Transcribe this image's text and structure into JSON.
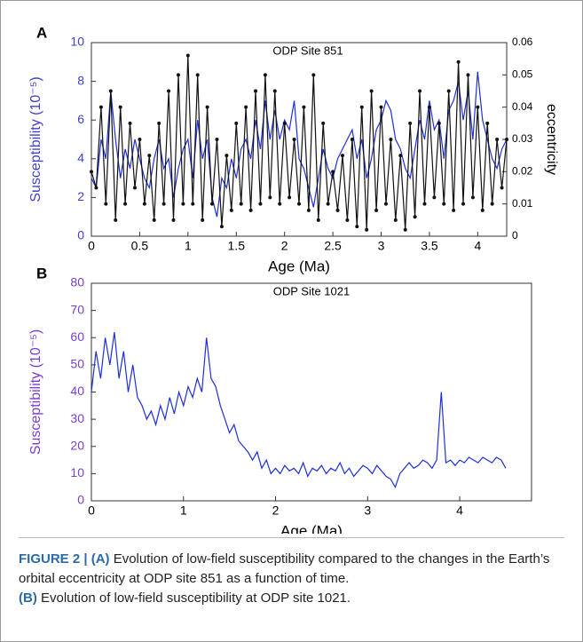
{
  "chart_data": [
    {
      "type": "line",
      "panel": "A",
      "title": "ODP Site 851",
      "xlabel": "Age (Ma)",
      "ylabel": "Susceptibility (10⁻⁵)",
      "y2label": "eccentricity",
      "axis_color": "#3f3fd6",
      "xlim": [
        0,
        4.3
      ],
      "xticks": [
        0,
        0.5,
        1,
        1.5,
        2,
        2.5,
        3,
        3.5,
        4
      ],
      "ylim": [
        0,
        10
      ],
      "yticks": [
        0,
        2,
        4,
        6,
        8,
        10
      ],
      "y2lim": [
        0,
        0.06
      ],
      "y2ticks": [
        0,
        0.01,
        0.02,
        0.03,
        0.04,
        0.05,
        0.06
      ],
      "x": [
        0,
        0.05,
        0.1,
        0.15,
        0.2,
        0.25,
        0.3,
        0.35,
        0.4,
        0.45,
        0.5,
        0.55,
        0.6,
        0.65,
        0.7,
        0.75,
        0.8,
        0.85,
        0.9,
        0.95,
        1,
        1.05,
        1.1,
        1.15,
        1.2,
        1.25,
        1.3,
        1.35,
        1.4,
        1.45,
        1.5,
        1.55,
        1.6,
        1.65,
        1.7,
        1.75,
        1.8,
        1.85,
        1.9,
        1.95,
        2,
        2.05,
        2.1,
        2.15,
        2.2,
        2.25,
        2.3,
        2.35,
        2.4,
        2.45,
        2.5,
        2.55,
        2.6,
        2.65,
        2.7,
        2.75,
        2.8,
        2.85,
        2.9,
        2.95,
        3,
        3.05,
        3.1,
        3.15,
        3.2,
        3.25,
        3.3,
        3.35,
        3.4,
        3.45,
        3.5,
        3.55,
        3.6,
        3.65,
        3.7,
        3.75,
        3.8,
        3.85,
        3.9,
        3.95,
        4,
        4.05,
        4.1,
        4.15,
        4.2,
        4.25,
        4.3
      ],
      "series": [
        {
          "color": "#1f2fd8",
          "values": [
            3,
            2.5,
            5,
            4,
            7.5,
            5,
            3,
            4.5,
            3.5,
            5,
            4,
            3,
            2.5,
            4,
            5,
            3.5,
            4,
            2,
            3.5,
            4.5,
            5,
            3,
            6,
            4,
            5,
            2,
            1,
            3,
            2.5,
            4,
            3,
            4.5,
            5,
            4,
            6,
            4.5,
            7,
            5,
            6.5,
            5,
            6,
            5.5,
            7,
            4,
            3.5,
            2.5,
            1.5,
            3,
            4.5,
            3.5,
            3,
            4,
            4.5,
            5,
            5.5,
            4,
            5,
            3,
            4,
            5.5,
            6,
            7,
            6.5,
            5,
            4.5,
            3.5,
            3,
            4.5,
            6,
            5,
            7,
            5.5,
            6,
            4,
            6.5,
            7,
            8,
            6,
            7.5,
            5,
            8.5,
            6,
            5,
            4,
            3.5,
            4.5,
            5
          ]
        },
        {
          "color": "#111111",
          "axis": "y2",
          "markers": true,
          "values": [
            0.02,
            0.015,
            0.04,
            0.01,
            0.045,
            0.005,
            0.04,
            0.01,
            0.035,
            0.015,
            0.03,
            0.01,
            0.025,
            0.005,
            0.035,
            0.01,
            0.045,
            0.005,
            0.05,
            0.01,
            0.056,
            0.01,
            0.05,
            0.005,
            0.04,
            0.01,
            0.03,
            0.003,
            0.025,
            0.008,
            0.035,
            0.01,
            0.04,
            0.008,
            0.045,
            0.01,
            0.05,
            0.012,
            0.045,
            0.01,
            0.035,
            0.012,
            0.03,
            0.01,
            0.04,
            0.008,
            0.05,
            0.005,
            0.035,
            0.01,
            0.02,
            0.008,
            0.025,
            0.005,
            0.03,
            0.003,
            0.04,
            0.002,
            0.045,
            0.008,
            0.04,
            0.01,
            0.03,
            0.005,
            0.025,
            0.002,
            0.035,
            0.006,
            0.045,
            0.01,
            0.04,
            0.012,
            0.035,
            0.01,
            0.045,
            0.008,
            0.054,
            0.01,
            0.05,
            0.012,
            0.04,
            0.008,
            0.035,
            0.01,
            0.03,
            0.015,
            0.03
          ]
        }
      ]
    },
    {
      "type": "line",
      "panel": "B",
      "title": "ODP Site 1021",
      "xlabel": "Age (Ma)",
      "ylabel": "Susceptibility (10⁻⁵)",
      "axis_color": "#7a3fd0",
      "xlim": [
        0,
        4.78
      ],
      "xticks": [
        0,
        1,
        2,
        3,
        4
      ],
      "ylim": [
        0,
        80
      ],
      "yticks": [
        0,
        10,
        20,
        30,
        40,
        50,
        60,
        70,
        80
      ],
      "x": [
        0,
        0.05,
        0.1,
        0.15,
        0.2,
        0.25,
        0.3,
        0.35,
        0.4,
        0.45,
        0.5,
        0.55,
        0.6,
        0.65,
        0.7,
        0.75,
        0.8,
        0.85,
        0.9,
        0.95,
        1,
        1.05,
        1.1,
        1.15,
        1.2,
        1.25,
        1.3,
        1.35,
        1.4,
        1.45,
        1.5,
        1.55,
        1.6,
        1.65,
        1.7,
        1.75,
        1.8,
        1.85,
        1.9,
        1.95,
        2,
        2.05,
        2.1,
        2.15,
        2.2,
        2.25,
        2.3,
        2.35,
        2.4,
        2.45,
        2.5,
        2.55,
        2.6,
        2.65,
        2.7,
        2.75,
        2.8,
        2.85,
        2.9,
        2.95,
        3,
        3.05,
        3.1,
        3.15,
        3.2,
        3.25,
        3.3,
        3.35,
        3.4,
        3.45,
        3.5,
        3.55,
        3.6,
        3.65,
        3.7,
        3.75,
        3.8,
        3.85,
        3.9,
        3.95,
        4,
        4.05,
        4.1,
        4.15,
        4.2,
        4.25,
        4.3,
        4.35,
        4.4,
        4.45,
        4.5
      ],
      "series": [
        {
          "color": "#1f2fd8",
          "values": [
            40,
            55,
            45,
            60,
            50,
            62,
            45,
            55,
            40,
            50,
            38,
            35,
            30,
            33,
            28,
            35,
            30,
            38,
            32,
            40,
            35,
            42,
            38,
            45,
            40,
            60,
            45,
            42,
            35,
            30,
            25,
            28,
            22,
            20,
            18,
            15,
            18,
            12,
            15,
            10,
            12,
            10,
            13,
            11,
            12,
            10,
            14,
            9,
            12,
            11,
            13,
            10,
            12,
            11,
            14,
            10,
            12,
            9,
            11,
            13,
            12,
            10,
            13,
            11,
            9,
            8,
            5,
            10,
            12,
            14,
            12,
            13,
            15,
            14,
            12,
            15,
            40,
            14,
            15,
            13,
            15,
            14,
            16,
            15,
            14,
            16,
            15,
            14,
            16,
            15,
            12
          ]
        }
      ]
    }
  ],
  "caption": {
    "label": "FIGURE 2 |",
    "a_tag": "(A)",
    "a_text": " Evolution of low-field susceptibility compared to the changes in the Earth’s orbital eccentricity at ODP site 851 as a function of time.",
    "b_tag": "(B)",
    "b_text": " Evolution of low-field susceptibility at ODP site 1021."
  }
}
